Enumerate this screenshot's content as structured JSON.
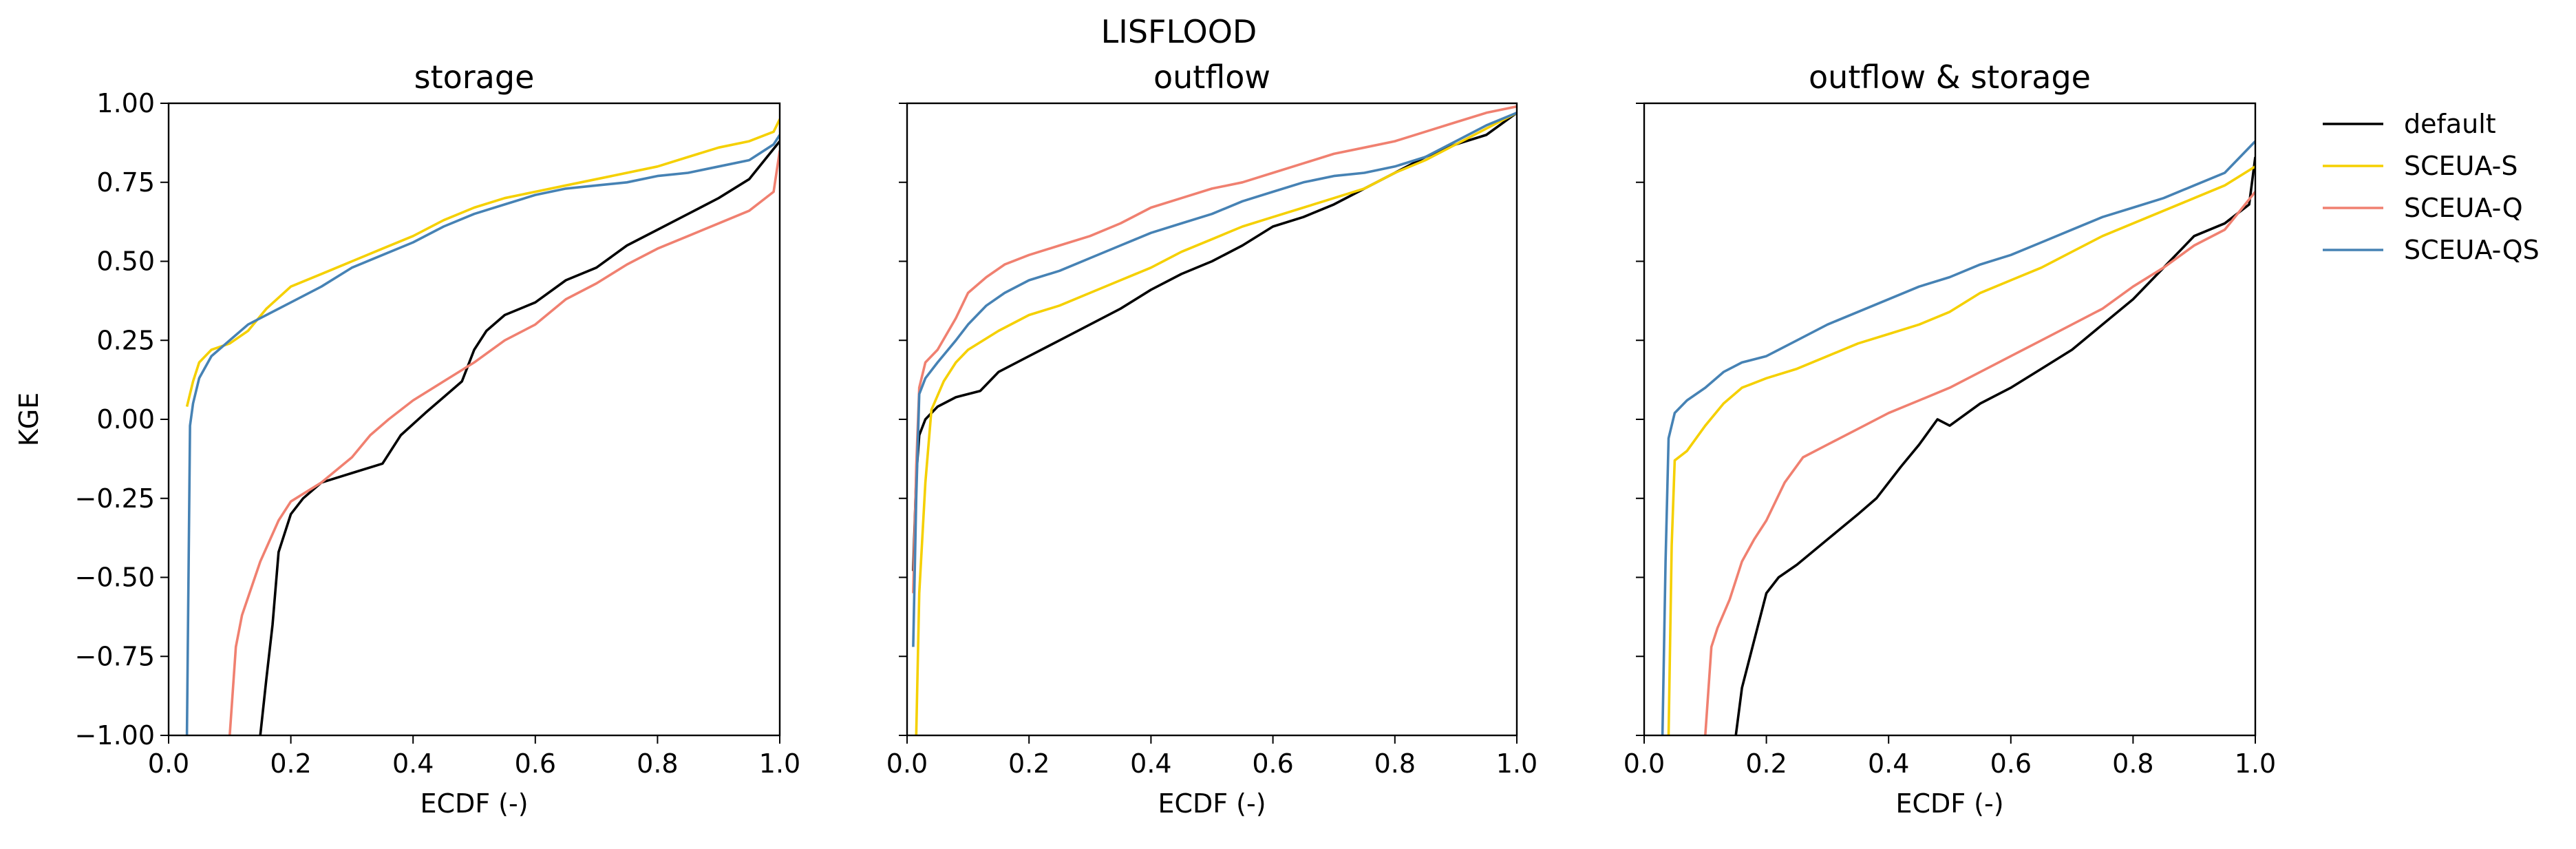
{
  "figure": {
    "title": "LISFLOOD",
    "legend": {
      "placement": "right",
      "entries": [
        {
          "name": "default",
          "color": "#000000"
        },
        {
          "name": "SCEUA-S",
          "color": "#f5d000"
        },
        {
          "name": "SCEUA-Q",
          "color": "#f08070"
        },
        {
          "name": "SCEUA-QS",
          "color": "#4682b4"
        }
      ]
    }
  },
  "chart_data": [
    {
      "type": "line",
      "title": "storage",
      "xlabel": "ECDF (-)",
      "ylabel": "KGE",
      "xlim": [
        0.0,
        1.0
      ],
      "ylim": [
        -1.0,
        1.0
      ],
      "xticks": [
        "0.0",
        "0.2",
        "0.4",
        "0.6",
        "0.8",
        "1.0"
      ],
      "yticks": [
        "1.00",
        "0.75",
        "0.50",
        "0.25",
        "0.00",
        "−0.25",
        "−0.50",
        "−0.75",
        "−1.00"
      ],
      "series": [
        {
          "name": "default",
          "color": "#000000",
          "x": [
            0.15,
            0.16,
            0.17,
            0.18,
            0.2,
            0.22,
            0.25,
            0.3,
            0.35,
            0.38,
            0.42,
            0.45,
            0.48,
            0.5,
            0.52,
            0.55,
            0.6,
            0.65,
            0.7,
            0.75,
            0.8,
            0.85,
            0.9,
            0.95,
            1.0
          ],
          "y": [
            -1.0,
            -0.82,
            -0.65,
            -0.42,
            -0.3,
            -0.25,
            -0.2,
            -0.17,
            -0.14,
            -0.05,
            0.02,
            0.07,
            0.12,
            0.22,
            0.28,
            0.33,
            0.37,
            0.44,
            0.48,
            0.55,
            0.6,
            0.65,
            0.7,
            0.76,
            0.88
          ]
        },
        {
          "name": "SCEUA-S",
          "color": "#f5d000",
          "x": [
            0.03,
            0.04,
            0.05,
            0.07,
            0.1,
            0.13,
            0.16,
            0.2,
            0.25,
            0.3,
            0.35,
            0.4,
            0.45,
            0.5,
            0.55,
            0.6,
            0.65,
            0.7,
            0.75,
            0.8,
            0.85,
            0.9,
            0.95,
            0.99,
            1.0
          ],
          "y": [
            0.04,
            0.12,
            0.18,
            0.22,
            0.24,
            0.28,
            0.35,
            0.42,
            0.46,
            0.5,
            0.54,
            0.58,
            0.63,
            0.67,
            0.7,
            0.72,
            0.74,
            0.76,
            0.78,
            0.8,
            0.83,
            0.86,
            0.88,
            0.91,
            0.95
          ]
        },
        {
          "name": "SCEUA-Q",
          "color": "#f08070",
          "x": [
            0.1,
            0.11,
            0.12,
            0.15,
            0.18,
            0.2,
            0.25,
            0.3,
            0.33,
            0.36,
            0.4,
            0.45,
            0.5,
            0.55,
            0.6,
            0.65,
            0.7,
            0.75,
            0.8,
            0.85,
            0.9,
            0.95,
            0.99,
            1.0
          ],
          "y": [
            -1.0,
            -0.72,
            -0.62,
            -0.45,
            -0.32,
            -0.26,
            -0.2,
            -0.12,
            -0.05,
            0.0,
            0.06,
            0.12,
            0.18,
            0.25,
            0.3,
            0.38,
            0.43,
            0.49,
            0.54,
            0.58,
            0.62,
            0.66,
            0.72,
            0.85
          ]
        },
        {
          "name": "SCEUA-QS",
          "color": "#4682b4",
          "x": [
            0.03,
            0.035,
            0.04,
            0.05,
            0.07,
            0.1,
            0.13,
            0.16,
            0.2,
            0.25,
            0.3,
            0.35,
            0.4,
            0.45,
            0.5,
            0.55,
            0.6,
            0.65,
            0.7,
            0.75,
            0.8,
            0.85,
            0.9,
            0.95,
            0.99,
            1.0
          ],
          "y": [
            -1.0,
            -0.02,
            0.05,
            0.13,
            0.2,
            0.25,
            0.3,
            0.33,
            0.37,
            0.42,
            0.48,
            0.52,
            0.56,
            0.61,
            0.65,
            0.68,
            0.71,
            0.73,
            0.74,
            0.75,
            0.77,
            0.78,
            0.8,
            0.82,
            0.87,
            0.9
          ]
        }
      ]
    },
    {
      "type": "line",
      "title": "outflow",
      "xlabel": "ECDF (-)",
      "ylabel": "",
      "xlim": [
        0.0,
        1.0
      ],
      "ylim": [
        -1.0,
        1.0
      ],
      "xticks": [
        "0.0",
        "0.2",
        "0.4",
        "0.6",
        "0.8",
        "1.0"
      ],
      "yticks": [],
      "series": [
        {
          "name": "default",
          "color": "#000000",
          "x": [
            0.01,
            0.015,
            0.02,
            0.03,
            0.05,
            0.08,
            0.12,
            0.15,
            0.2,
            0.25,
            0.3,
            0.35,
            0.4,
            0.45,
            0.5,
            0.55,
            0.6,
            0.65,
            0.7,
            0.75,
            0.8,
            0.85,
            0.9,
            0.95,
            1.0
          ],
          "y": [
            -0.48,
            -0.18,
            -0.05,
            0.0,
            0.04,
            0.07,
            0.09,
            0.15,
            0.2,
            0.25,
            0.3,
            0.35,
            0.41,
            0.46,
            0.5,
            0.55,
            0.61,
            0.64,
            0.68,
            0.73,
            0.78,
            0.83,
            0.87,
            0.9,
            0.97
          ]
        },
        {
          "name": "SCEUA-S",
          "color": "#f5d000",
          "x": [
            0.015,
            0.02,
            0.03,
            0.04,
            0.06,
            0.08,
            0.1,
            0.15,
            0.2,
            0.25,
            0.3,
            0.35,
            0.4,
            0.45,
            0.5,
            0.55,
            0.6,
            0.65,
            0.7,
            0.75,
            0.8,
            0.85,
            0.9,
            0.95,
            1.0
          ],
          "y": [
            -1.0,
            -0.55,
            -0.2,
            0.03,
            0.12,
            0.18,
            0.22,
            0.28,
            0.33,
            0.36,
            0.4,
            0.44,
            0.48,
            0.53,
            0.57,
            0.61,
            0.64,
            0.67,
            0.7,
            0.73,
            0.78,
            0.82,
            0.87,
            0.92,
            0.97
          ]
        },
        {
          "name": "SCEUA-Q",
          "color": "#f08070",
          "x": [
            0.01,
            0.015,
            0.02,
            0.03,
            0.05,
            0.08,
            0.1,
            0.13,
            0.16,
            0.2,
            0.25,
            0.3,
            0.35,
            0.4,
            0.45,
            0.5,
            0.55,
            0.6,
            0.65,
            0.7,
            0.75,
            0.8,
            0.85,
            0.9,
            0.95,
            1.0
          ],
          "y": [
            -0.55,
            -0.15,
            0.1,
            0.18,
            0.22,
            0.32,
            0.4,
            0.45,
            0.49,
            0.52,
            0.55,
            0.58,
            0.62,
            0.67,
            0.7,
            0.73,
            0.75,
            0.78,
            0.81,
            0.84,
            0.86,
            0.88,
            0.91,
            0.94,
            0.97,
            0.99
          ]
        },
        {
          "name": "SCEUA-QS",
          "color": "#4682b4",
          "x": [
            0.01,
            0.015,
            0.02,
            0.03,
            0.05,
            0.08,
            0.1,
            0.13,
            0.16,
            0.2,
            0.25,
            0.3,
            0.35,
            0.4,
            0.45,
            0.5,
            0.55,
            0.6,
            0.65,
            0.7,
            0.75,
            0.8,
            0.85,
            0.9,
            0.95,
            1.0
          ],
          "y": [
            -0.72,
            -0.25,
            0.08,
            0.13,
            0.18,
            0.25,
            0.3,
            0.36,
            0.4,
            0.44,
            0.47,
            0.51,
            0.55,
            0.59,
            0.62,
            0.65,
            0.69,
            0.72,
            0.75,
            0.77,
            0.78,
            0.8,
            0.83,
            0.88,
            0.93,
            0.97
          ]
        }
      ]
    },
    {
      "type": "line",
      "title": "outflow & storage",
      "xlabel": "ECDF (-)",
      "ylabel": "",
      "xlim": [
        0.0,
        1.0
      ],
      "ylim": [
        -1.0,
        1.0
      ],
      "xticks": [
        "0.0",
        "0.2",
        "0.4",
        "0.6",
        "0.8",
        "1.0"
      ],
      "yticks": [],
      "series": [
        {
          "name": "default",
          "color": "#000000",
          "x": [
            0.15,
            0.16,
            0.18,
            0.2,
            0.22,
            0.25,
            0.3,
            0.35,
            0.38,
            0.42,
            0.45,
            0.48,
            0.5,
            0.55,
            0.6,
            0.65,
            0.7,
            0.75,
            0.8,
            0.85,
            0.9,
            0.95,
            0.99,
            1.0
          ],
          "y": [
            -1.0,
            -0.85,
            -0.7,
            -0.55,
            -0.5,
            -0.46,
            -0.38,
            -0.3,
            -0.25,
            -0.15,
            -0.08,
            0.0,
            -0.02,
            0.05,
            0.1,
            0.16,
            0.22,
            0.3,
            0.38,
            0.48,
            0.58,
            0.62,
            0.68,
            0.83
          ]
        },
        {
          "name": "SCEUA-S",
          "color": "#f5d000",
          "x": [
            0.04,
            0.045,
            0.05,
            0.07,
            0.1,
            0.13,
            0.16,
            0.2,
            0.25,
            0.3,
            0.35,
            0.4,
            0.45,
            0.5,
            0.55,
            0.6,
            0.65,
            0.7,
            0.75,
            0.8,
            0.85,
            0.9,
            0.95,
            1.0
          ],
          "y": [
            -1.0,
            -0.4,
            -0.13,
            -0.1,
            -0.02,
            0.05,
            0.1,
            0.13,
            0.16,
            0.2,
            0.24,
            0.27,
            0.3,
            0.34,
            0.4,
            0.44,
            0.48,
            0.53,
            0.58,
            0.62,
            0.66,
            0.7,
            0.74,
            0.8
          ]
        },
        {
          "name": "SCEUA-Q",
          "color": "#f08070",
          "x": [
            0.1,
            0.11,
            0.12,
            0.14,
            0.16,
            0.18,
            0.2,
            0.23,
            0.26,
            0.3,
            0.35,
            0.4,
            0.45,
            0.5,
            0.55,
            0.6,
            0.65,
            0.7,
            0.75,
            0.8,
            0.85,
            0.9,
            0.95,
            1.0
          ],
          "y": [
            -1.0,
            -0.72,
            -0.66,
            -0.57,
            -0.45,
            -0.38,
            -0.32,
            -0.2,
            -0.12,
            -0.08,
            -0.03,
            0.02,
            0.06,
            0.1,
            0.15,
            0.2,
            0.25,
            0.3,
            0.35,
            0.42,
            0.48,
            0.55,
            0.6,
            0.72
          ]
        },
        {
          "name": "SCEUA-QS",
          "color": "#4682b4",
          "x": [
            0.03,
            0.035,
            0.04,
            0.05,
            0.07,
            0.1,
            0.13,
            0.16,
            0.2,
            0.25,
            0.3,
            0.35,
            0.4,
            0.45,
            0.5,
            0.55,
            0.6,
            0.65,
            0.7,
            0.75,
            0.8,
            0.85,
            0.9,
            0.95,
            1.0
          ],
          "y": [
            -1.0,
            -0.45,
            -0.06,
            0.02,
            0.06,
            0.1,
            0.15,
            0.18,
            0.2,
            0.25,
            0.3,
            0.34,
            0.38,
            0.42,
            0.45,
            0.49,
            0.52,
            0.56,
            0.6,
            0.64,
            0.67,
            0.7,
            0.74,
            0.78,
            0.88
          ]
        }
      ]
    }
  ]
}
